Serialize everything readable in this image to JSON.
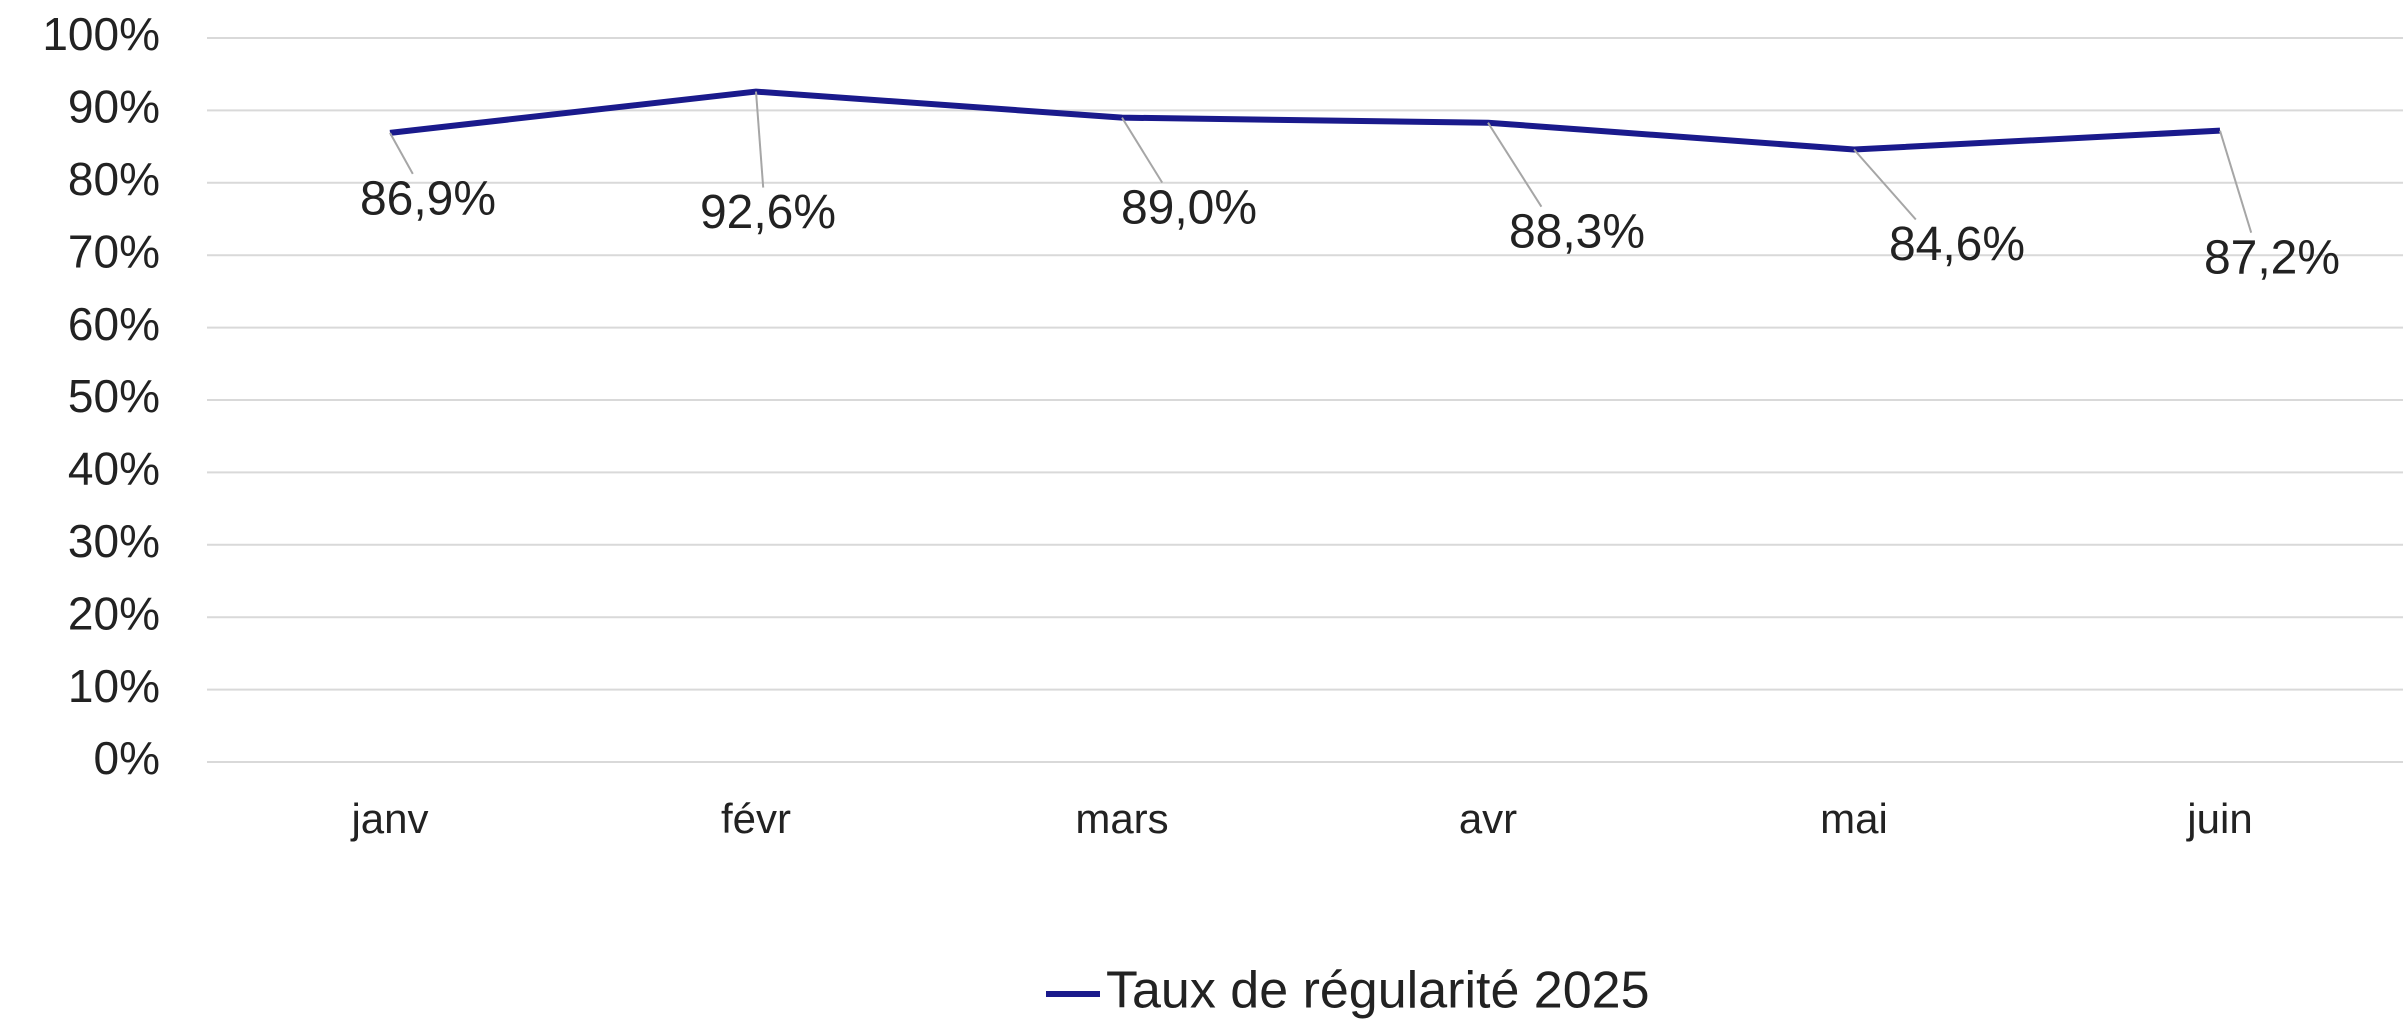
{
  "chart_data": {
    "type": "line",
    "categories": [
      "janv",
      "févr",
      "mars",
      "avr",
      "mai",
      "juin"
    ],
    "series": [
      {
        "name": "Taux de régularité 2025",
        "color": "#1a1a8c",
        "values": [
          86.9,
          92.6,
          89.0,
          88.3,
          84.6,
          87.2
        ],
        "value_labels": [
          "86,9%",
          "92,6%",
          "89,0%",
          "88,3%",
          "84,6%",
          "87,2%"
        ]
      }
    ],
    "ylim": [
      0,
      100
    ],
    "yticks": [
      {
        "value": 0,
        "label": "0%"
      },
      {
        "value": 10,
        "label": "10%"
      },
      {
        "value": 20,
        "label": "20%"
      },
      {
        "value": 30,
        "label": "30%"
      },
      {
        "value": 40,
        "label": "40%"
      },
      {
        "value": 50,
        "label": "50%"
      },
      {
        "value": 60,
        "label": "60%"
      },
      {
        "value": 70,
        "label": "70%"
      },
      {
        "value": 80,
        "label": "80%"
      },
      {
        "value": 90,
        "label": "90%"
      },
      {
        "value": 100,
        "label": "100%"
      }
    ],
    "grid": true,
    "legend": "bottom"
  }
}
